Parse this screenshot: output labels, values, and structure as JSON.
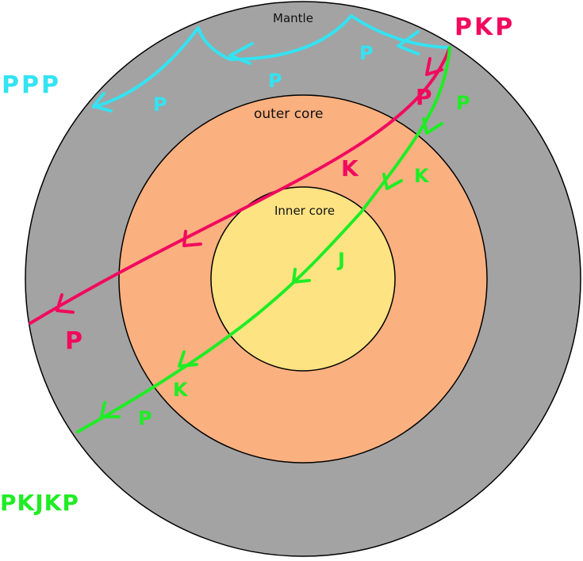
{
  "layers": {
    "mantle": {
      "label": "Mantle",
      "color": "#a3a3a3"
    },
    "outer_core": {
      "label": "outer core",
      "color": "#fbb080"
    },
    "inner_core": {
      "label": "Inner core",
      "color": "#fee383"
    }
  },
  "rays": {
    "pkp": {
      "label": "PKP",
      "color": "#f2095e",
      "segments": [
        "P",
        "K",
        "P"
      ]
    },
    "ppp": {
      "label": "PPP",
      "color": "#33e3f2",
      "segments": [
        "P",
        "P",
        "P"
      ]
    },
    "pkjkp": {
      "label": "PKJKP",
      "color": "#1fed24",
      "segments": [
        "P",
        "K",
        "J",
        "K",
        "P"
      ]
    }
  },
  "colors": {
    "outline": "#000000",
    "background": "#ffffff"
  }
}
